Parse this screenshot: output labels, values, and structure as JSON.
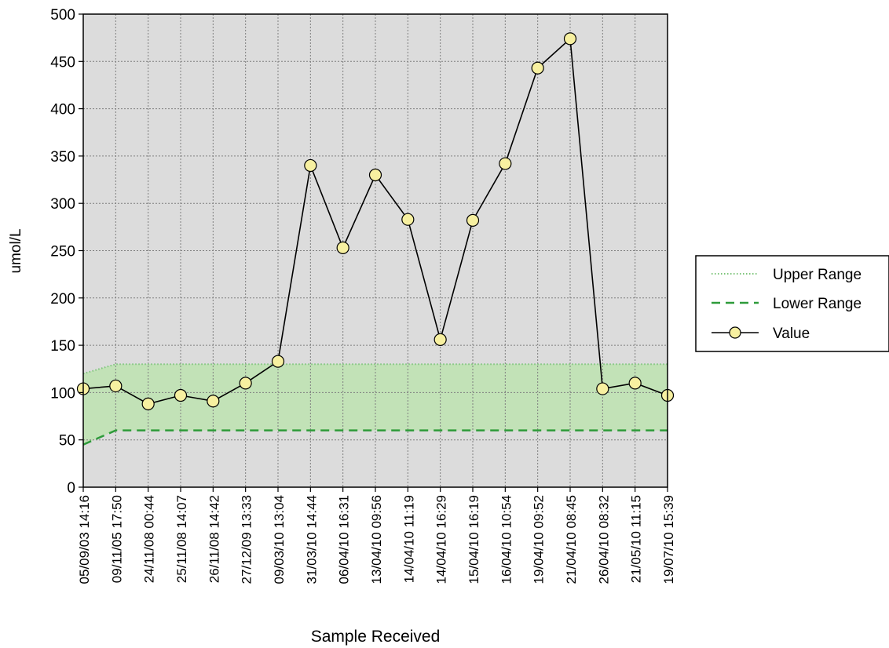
{
  "chart_data": {
    "type": "line",
    "title": "",
    "xlabel": "Sample Received",
    "ylabel": "umol/L",
    "ylim": [
      0,
      500
    ],
    "yticks": [
      0,
      50,
      100,
      150,
      200,
      250,
      300,
      350,
      400,
      450,
      500
    ],
    "grid": true,
    "legend_position": "right",
    "categories": [
      "05/09/03 14:16",
      "09/11/05 17:50",
      "24/11/08 00:44",
      "25/11/08 14:07",
      "26/11/08 14:42",
      "27/12/09 13:33",
      "09/03/10 13:04",
      "31/03/10 14:44",
      "06/04/10 16:31",
      "13/04/10 09:56",
      "14/04/10 11:19",
      "14/04/10 16:29",
      "15/04/10 16:19",
      "16/04/10 10:54",
      "19/04/10 09:52",
      "21/04/10 08:45",
      "26/04/10 08:32",
      "21/05/10 11:15",
      "19/07/10 15:39"
    ],
    "series": [
      {
        "name": "Upper Range",
        "values": [
          120,
          130,
          130,
          130,
          130,
          130,
          130,
          130,
          130,
          130,
          130,
          130,
          130,
          130,
          130,
          130,
          130,
          130,
          130
        ],
        "color": "#7cc47a",
        "style": "dotted"
      },
      {
        "name": "Lower Range",
        "values": [
          45,
          60,
          60,
          60,
          60,
          60,
          60,
          60,
          60,
          60,
          60,
          60,
          60,
          60,
          60,
          60,
          60,
          60,
          60
        ],
        "color": "#2e9b3a",
        "style": "dashed"
      },
      {
        "name": "Value",
        "values": [
          104,
          107,
          88,
          97,
          91,
          110,
          133,
          340,
          253,
          330,
          283,
          156,
          282,
          342,
          443,
          474,
          104,
          110,
          97
        ],
        "color": "#000000",
        "marker_color": "#f7f0a0",
        "style": "solid-with-circle-markers"
      }
    ],
    "colors": {
      "plot_background": "#dcdcdc",
      "range_band": "#bde3b0",
      "grid": "#7f7f7f"
    }
  }
}
